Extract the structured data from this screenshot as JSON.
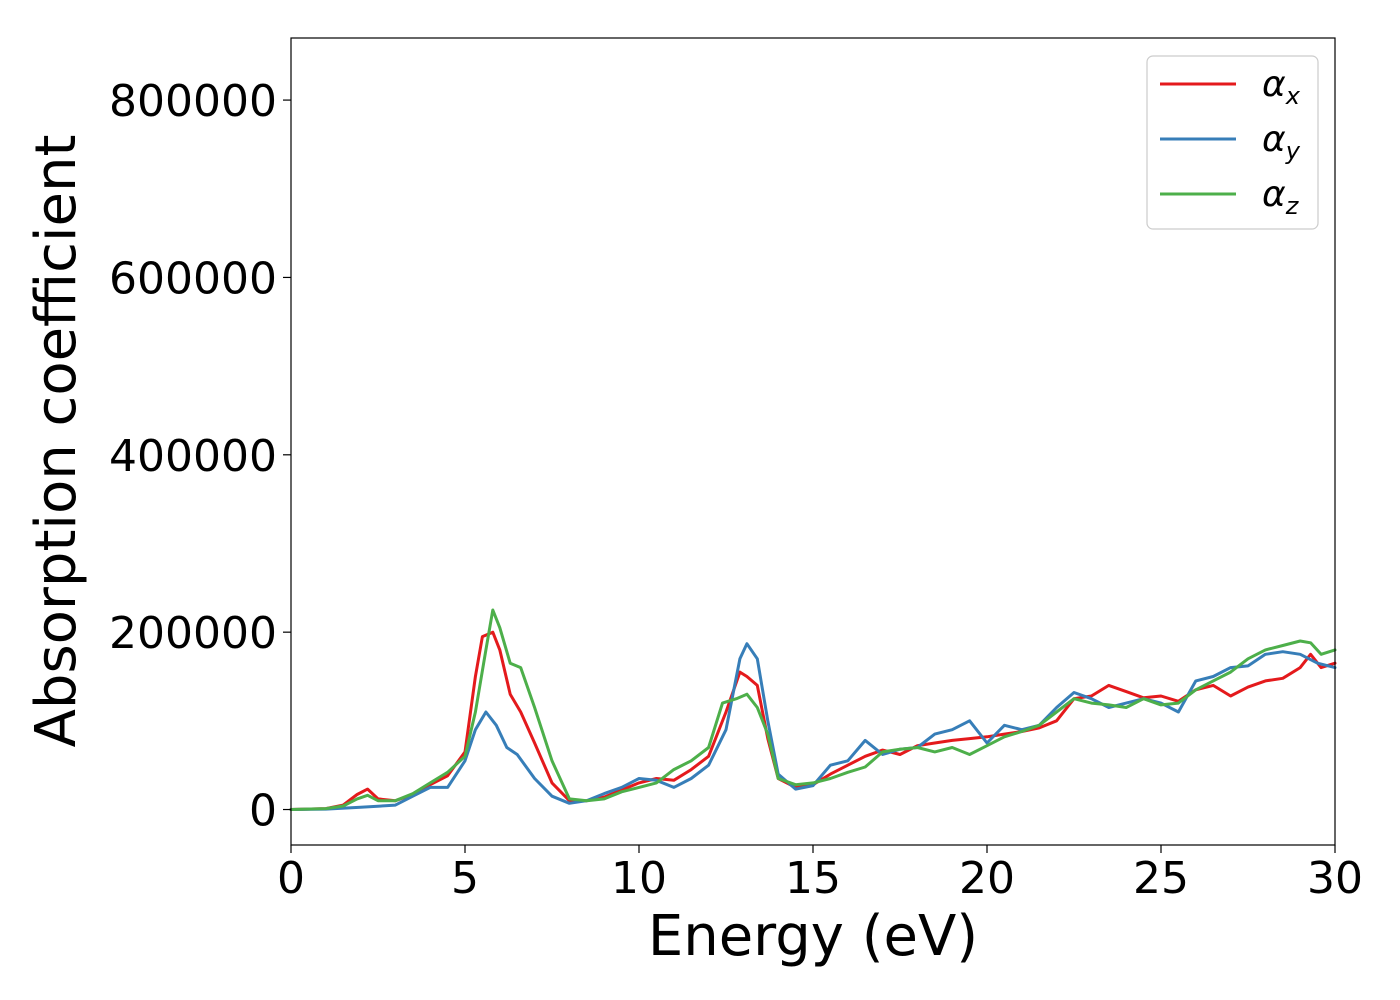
{
  "chart_data": {
    "type": "line",
    "title": "",
    "xlabel": "Energy (eV)",
    "ylabel": "Absorption coefficient",
    "xlim": [
      0,
      30
    ],
    "ylim": [
      -40000,
      870000
    ],
    "xticks": [
      0,
      5,
      10,
      15,
      20,
      25,
      30
    ],
    "yticks": [
      0,
      200000,
      400000,
      600000,
      800000
    ],
    "xtick_labels": [
      "0",
      "5",
      "10",
      "15",
      "20",
      "25",
      "30"
    ],
    "ytick_labels": [
      "0",
      "200000",
      "400000",
      "600000",
      "800000"
    ],
    "grid": false,
    "legend_position": "top-right",
    "series": [
      {
        "name": "α",
        "name_sub": "x",
        "color": "#e41a1c",
        "x": [
          0,
          1,
          1.5,
          1.9,
          2.2,
          2.5,
          3.0,
          3.5,
          4.0,
          4.5,
          5.0,
          5.3,
          5.5,
          5.8,
          6.0,
          6.3,
          6.6,
          7.0,
          7.5,
          8.0,
          8.5,
          9.0,
          9.5,
          10.0,
          10.5,
          11.0,
          11.5,
          12.0,
          12.5,
          12.9,
          13.1,
          13.4,
          13.7,
          14.0,
          14.5,
          15.0,
          15.5,
          16.0,
          16.5,
          17.0,
          17.5,
          18.0,
          18.5,
          19.0,
          19.5,
          20.0,
          20.5,
          21.0,
          21.5,
          22.0,
          22.5,
          23.0,
          23.5,
          24.0,
          24.5,
          25.0,
          25.5,
          26.0,
          26.5,
          27.0,
          27.5,
          28.0,
          28.5,
          29.0,
          29.3,
          29.6,
          30.0
        ],
        "y": [
          0,
          1000,
          5000,
          17000,
          23000,
          12000,
          10000,
          17000,
          28000,
          38000,
          65000,
          150000,
          195000,
          200000,
          180000,
          130000,
          110000,
          75000,
          30000,
          10000,
          10000,
          14000,
          22000,
          30000,
          35000,
          33000,
          45000,
          60000,
          110000,
          155000,
          150000,
          140000,
          80000,
          35000,
          25000,
          28000,
          40000,
          50000,
          60000,
          67000,
          62000,
          72000,
          75000,
          78000,
          80000,
          82000,
          85000,
          88000,
          92000,
          100000,
          125000,
          128000,
          140000,
          133000,
          126000,
          128000,
          122000,
          135000,
          140000,
          128000,
          138000,
          145000,
          148000,
          160000,
          175000,
          160000,
          165000
        ]
      },
      {
        "name": "α",
        "name_sub": "y",
        "color": "#377eb8",
        "x": [
          0,
          1,
          2,
          3.0,
          3.5,
          4.0,
          4.5,
          5.0,
          5.3,
          5.6,
          5.9,
          6.2,
          6.5,
          7.0,
          7.5,
          8.0,
          8.5,
          9.0,
          9.5,
          10.0,
          10.5,
          11.0,
          11.5,
          12.0,
          12.5,
          12.9,
          13.1,
          13.4,
          13.7,
          14.0,
          14.5,
          15.0,
          15.5,
          16.0,
          16.5,
          17.0,
          17.5,
          18.0,
          18.5,
          19.0,
          19.5,
          20.0,
          20.5,
          21.0,
          21.5,
          22.0,
          22.5,
          23.0,
          23.5,
          24.0,
          24.5,
          25.0,
          25.5,
          26.0,
          26.5,
          27.0,
          27.5,
          28.0,
          28.5,
          29.0,
          29.5,
          30.0
        ],
        "y": [
          0,
          500,
          2500,
          5000,
          15000,
          25000,
          25000,
          55000,
          90000,
          110000,
          95000,
          70000,
          62000,
          35000,
          15000,
          7000,
          10000,
          18000,
          25000,
          35000,
          33000,
          25000,
          35000,
          50000,
          90000,
          170000,
          187000,
          170000,
          100000,
          40000,
          23000,
          27000,
          50000,
          55000,
          78000,
          62000,
          68000,
          70000,
          85000,
          90000,
          100000,
          75000,
          95000,
          90000,
          95000,
          115000,
          132000,
          125000,
          115000,
          120000,
          125000,
          120000,
          110000,
          145000,
          150000,
          160000,
          162000,
          175000,
          178000,
          175000,
          165000,
          160000
        ]
      },
      {
        "name": "α",
        "name_sub": "z",
        "color": "#4daf4a",
        "x": [
          0,
          1,
          1.5,
          1.9,
          2.2,
          2.5,
          3.0,
          3.5,
          4.0,
          4.5,
          5.0,
          5.3,
          5.6,
          5.8,
          6.0,
          6.3,
          6.6,
          7.0,
          7.5,
          8.0,
          8.5,
          9.0,
          9.5,
          10.0,
          10.5,
          11.0,
          11.5,
          12.0,
          12.4,
          12.8,
          13.1,
          13.4,
          13.7,
          14.0,
          14.5,
          15.0,
          15.5,
          16.0,
          16.5,
          17.0,
          17.5,
          18.0,
          18.5,
          19.0,
          19.5,
          20.0,
          20.5,
          21.0,
          21.5,
          22.0,
          22.5,
          23.0,
          23.5,
          24.0,
          24.5,
          25.0,
          25.5,
          26.0,
          26.5,
          27.0,
          27.5,
          28.0,
          28.5,
          29.0,
          29.3,
          29.6,
          30.0
        ],
        "y": [
          0,
          1000,
          4000,
          12000,
          16000,
          10000,
          10000,
          18000,
          30000,
          42000,
          60000,
          110000,
          180000,
          225000,
          205000,
          165000,
          160000,
          115000,
          55000,
          12000,
          10000,
          12000,
          20000,
          25000,
          30000,
          45000,
          55000,
          70000,
          120000,
          125000,
          130000,
          115000,
          85000,
          35000,
          28000,
          30000,
          35000,
          42000,
          48000,
          65000,
          68000,
          70000,
          65000,
          70000,
          62000,
          72000,
          82000,
          88000,
          95000,
          110000,
          125000,
          120000,
          118000,
          115000,
          125000,
          118000,
          120000,
          135000,
          145000,
          155000,
          170000,
          180000,
          185000,
          190000,
          188000,
          175000,
          180000
        ]
      }
    ]
  }
}
